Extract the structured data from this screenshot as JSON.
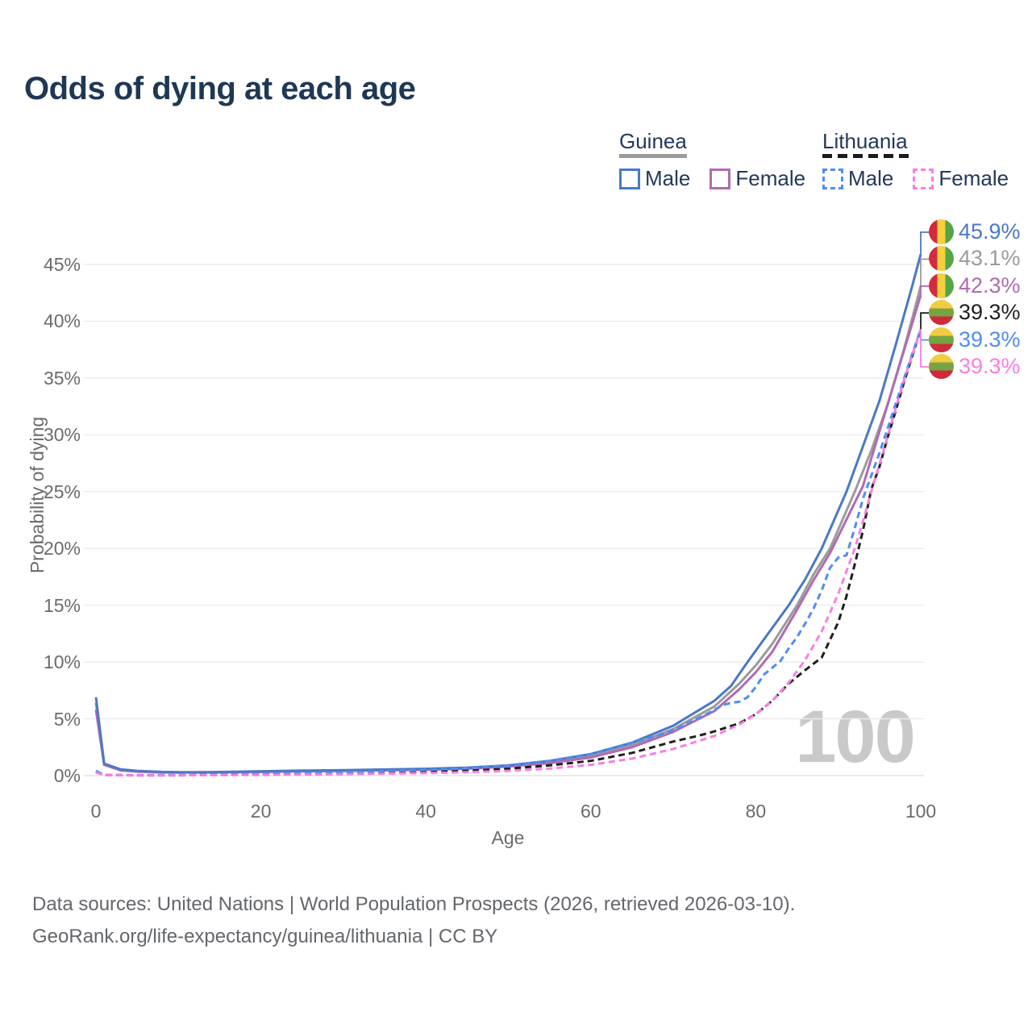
{
  "title": "Odds of dying at each age",
  "legend": {
    "groups": [
      {
        "name": "Guinea",
        "line_style": "solid",
        "underline_color": "#9b9b9b",
        "items": [
          {
            "label": "Male",
            "color": "#4a79c4",
            "dashed": false
          },
          {
            "label": "Female",
            "color": "#b16ab3",
            "dashed": false
          }
        ]
      },
      {
        "name": "Lithuania",
        "line_style": "dashed",
        "underline_color": "#1b1b1b",
        "items": [
          {
            "label": "Male",
            "color": "#4f8df2",
            "dashed": true
          },
          {
            "label": "Female",
            "color": "#fb7de4",
            "dashed": true
          }
        ]
      }
    ]
  },
  "chart_data": {
    "type": "line",
    "title": "Odds of dying at each age",
    "xlabel": "Age",
    "ylabel": "Probability of dying",
    "xlim": [
      0,
      100
    ],
    "ylim": [
      0,
      47.5
    ],
    "x_ticks": [
      0,
      20,
      40,
      60,
      80,
      100
    ],
    "y_ticks": [
      0,
      5,
      10,
      15,
      20,
      25,
      30,
      35,
      40,
      45
    ],
    "grid": "horizontal",
    "legend_position": "top-right",
    "hover_age_label": "100",
    "series": [
      {
        "name": "Guinea Male",
        "flag": "guinea",
        "color": "#4a79c4",
        "dashed": false,
        "end_label": "45.9%",
        "points": [
          [
            0,
            6.9
          ],
          [
            1,
            1.05
          ],
          [
            3,
            0.55
          ],
          [
            5,
            0.42
          ],
          [
            8,
            0.33
          ],
          [
            10,
            0.3
          ],
          [
            13,
            0.3
          ],
          [
            15,
            0.32
          ],
          [
            20,
            0.38
          ],
          [
            25,
            0.44
          ],
          [
            30,
            0.48
          ],
          [
            35,
            0.54
          ],
          [
            40,
            0.6
          ],
          [
            45,
            0.7
          ],
          [
            50,
            0.9
          ],
          [
            55,
            1.3
          ],
          [
            60,
            1.9
          ],
          [
            65,
            2.9
          ],
          [
            70,
            4.4
          ],
          [
            75,
            6.6
          ],
          [
            77,
            7.9
          ],
          [
            79,
            10
          ],
          [
            81,
            12
          ],
          [
            84,
            15
          ],
          [
            86,
            17.3
          ],
          [
            88,
            20
          ],
          [
            91,
            25
          ],
          [
            93,
            29
          ],
          [
            95,
            33
          ],
          [
            97,
            38
          ],
          [
            99,
            43.2
          ],
          [
            100,
            45.9
          ]
        ]
      },
      {
        "name": "Guinea Both sexes",
        "flag": "guinea",
        "color": "#9b9b9b",
        "dashed": false,
        "end_label": "43.1%",
        "points": [
          [
            0,
            6.4
          ],
          [
            1,
            1.0
          ],
          [
            3,
            0.5
          ],
          [
            5,
            0.38
          ],
          [
            8,
            0.3
          ],
          [
            10,
            0.28
          ],
          [
            15,
            0.3
          ],
          [
            20,
            0.35
          ],
          [
            25,
            0.4
          ],
          [
            30,
            0.45
          ],
          [
            35,
            0.5
          ],
          [
            40,
            0.56
          ],
          [
            45,
            0.65
          ],
          [
            50,
            0.85
          ],
          [
            55,
            1.2
          ],
          [
            60,
            1.75
          ],
          [
            65,
            2.7
          ],
          [
            70,
            4.1
          ],
          [
            75,
            6.1
          ],
          [
            78,
            8.1
          ],
          [
            80,
            9.7
          ],
          [
            82,
            11.6
          ],
          [
            85,
            15
          ],
          [
            87,
            17.7
          ],
          [
            89,
            20
          ],
          [
            92,
            25
          ],
          [
            94,
            28.6
          ],
          [
            96,
            32.7
          ],
          [
            98,
            37.6
          ],
          [
            100,
            43.1
          ]
        ]
      },
      {
        "name": "Guinea Female",
        "flag": "guinea",
        "color": "#b16ab3",
        "dashed": false,
        "end_label": "42.3%",
        "points": [
          [
            0,
            5.8
          ],
          [
            1,
            0.95
          ],
          [
            3,
            0.46
          ],
          [
            5,
            0.35
          ],
          [
            8,
            0.28
          ],
          [
            10,
            0.26
          ],
          [
            15,
            0.28
          ],
          [
            20,
            0.32
          ],
          [
            25,
            0.37
          ],
          [
            30,
            0.41
          ],
          [
            35,
            0.46
          ],
          [
            40,
            0.52
          ],
          [
            45,
            0.6
          ],
          [
            50,
            0.8
          ],
          [
            55,
            1.1
          ],
          [
            60,
            1.6
          ],
          [
            65,
            2.5
          ],
          [
            70,
            3.85
          ],
          [
            75,
            5.7
          ],
          [
            78,
            7.6
          ],
          [
            80,
            9.1
          ],
          [
            82,
            10.9
          ],
          [
            85,
            14.6
          ],
          [
            87,
            17.2
          ],
          [
            89,
            19.6
          ],
          [
            93,
            25.5
          ],
          [
            95,
            30.3
          ],
          [
            97,
            35.1
          ],
          [
            99,
            39.9
          ],
          [
            100,
            42.3
          ]
        ]
      },
      {
        "name": "Lithuania Both sexes",
        "flag": "lithuania",
        "color": "#1f1f1f",
        "dashed": true,
        "end_label": "39.3%",
        "points": [
          [
            0,
            0.32
          ],
          [
            1,
            0.05
          ],
          [
            5,
            0.03
          ],
          [
            10,
            0.03
          ],
          [
            15,
            0.06
          ],
          [
            20,
            0.09
          ],
          [
            25,
            0.13
          ],
          [
            30,
            0.17
          ],
          [
            35,
            0.23
          ],
          [
            40,
            0.3
          ],
          [
            45,
            0.42
          ],
          [
            50,
            0.6
          ],
          [
            55,
            0.9
          ],
          [
            60,
            1.3
          ],
          [
            65,
            2.0
          ],
          [
            70,
            3.0
          ],
          [
            73,
            3.5
          ],
          [
            75,
            3.9
          ],
          [
            78,
            4.6
          ],
          [
            80,
            5.4
          ],
          [
            82,
            6.6
          ],
          [
            84,
            8.1
          ],
          [
            86,
            9.3
          ],
          [
            88,
            10.4
          ],
          [
            90,
            13.5
          ],
          [
            91,
            15.8
          ],
          [
            92,
            18.6
          ],
          [
            93,
            21.6
          ],
          [
            94,
            25.2
          ],
          [
            95,
            27.2
          ],
          [
            96,
            29.8
          ],
          [
            97,
            32.2
          ],
          [
            98,
            34.7
          ],
          [
            99,
            37
          ],
          [
            100,
            39.3
          ]
        ]
      },
      {
        "name": "Lithuania Male",
        "flag": "lithuania",
        "color": "#4f8df2",
        "dashed": true,
        "end_label": "39.3%",
        "points": [
          [
            0,
            0.42
          ],
          [
            1,
            0.06
          ],
          [
            5,
            0.04
          ],
          [
            10,
            0.04
          ],
          [
            15,
            0.1
          ],
          [
            20,
            0.16
          ],
          [
            25,
            0.22
          ],
          [
            30,
            0.3
          ],
          [
            35,
            0.4
          ],
          [
            40,
            0.5
          ],
          [
            45,
            0.65
          ],
          [
            50,
            0.9
          ],
          [
            55,
            1.3
          ],
          [
            60,
            1.9
          ],
          [
            65,
            2.9
          ],
          [
            68,
            3.5
          ],
          [
            70,
            4.0
          ],
          [
            72,
            4.7
          ],
          [
            74,
            5.4
          ],
          [
            76,
            6.2
          ],
          [
            77,
            6.4
          ],
          [
            78,
            6.5
          ],
          [
            79,
            6.9
          ],
          [
            80,
            7.8
          ],
          [
            81,
            8.9
          ],
          [
            82,
            9.5
          ],
          [
            83,
            10.1
          ],
          [
            84,
            11.2
          ],
          [
            85,
            12.2
          ],
          [
            86,
            13.4
          ],
          [
            87,
            14.7
          ],
          [
            88,
            16.3
          ],
          [
            89,
            18.3
          ],
          [
            90,
            19.2
          ],
          [
            91,
            19.4
          ],
          [
            92,
            21.8
          ],
          [
            93,
            24.4
          ],
          [
            94,
            26.4
          ],
          [
            95,
            28.4
          ],
          [
            96,
            30.6
          ],
          [
            97,
            32.8
          ],
          [
            98,
            35
          ],
          [
            99,
            37.2
          ],
          [
            100,
            39.3
          ]
        ]
      },
      {
        "name": "Lithuania Female",
        "flag": "lithuania",
        "color": "#fb7de4",
        "dashed": true,
        "end_label": "39.3%",
        "points": [
          [
            0,
            0.28
          ],
          [
            1,
            0.04
          ],
          [
            5,
            0.02
          ],
          [
            10,
            0.02
          ],
          [
            15,
            0.04
          ],
          [
            20,
            0.06
          ],
          [
            25,
            0.09
          ],
          [
            30,
            0.12
          ],
          [
            35,
            0.17
          ],
          [
            40,
            0.22
          ],
          [
            45,
            0.3
          ],
          [
            50,
            0.42
          ],
          [
            55,
            0.62
          ],
          [
            60,
            0.95
          ],
          [
            65,
            1.5
          ],
          [
            70,
            2.35
          ],
          [
            75,
            3.5
          ],
          [
            78,
            4.5
          ],
          [
            80,
            5.4
          ],
          [
            82,
            6.6
          ],
          [
            84,
            8.2
          ],
          [
            86,
            10.2
          ],
          [
            88,
            12.7
          ],
          [
            90,
            16
          ],
          [
            92,
            20
          ],
          [
            93,
            22.4
          ],
          [
            94,
            25
          ],
          [
            95,
            27.4
          ],
          [
            96,
            29.9
          ],
          [
            97,
            32.4
          ],
          [
            98,
            34.9
          ],
          [
            99,
            37.1
          ],
          [
            100,
            39.3
          ]
        ]
      }
    ]
  },
  "footer": {
    "line1": "Data sources: United Nations | World Population Prospects (2026, retrieved 2026-03-10).",
    "line2": "GeoRank.org/life-expectancy/guinea/lithuania | CC BY"
  }
}
